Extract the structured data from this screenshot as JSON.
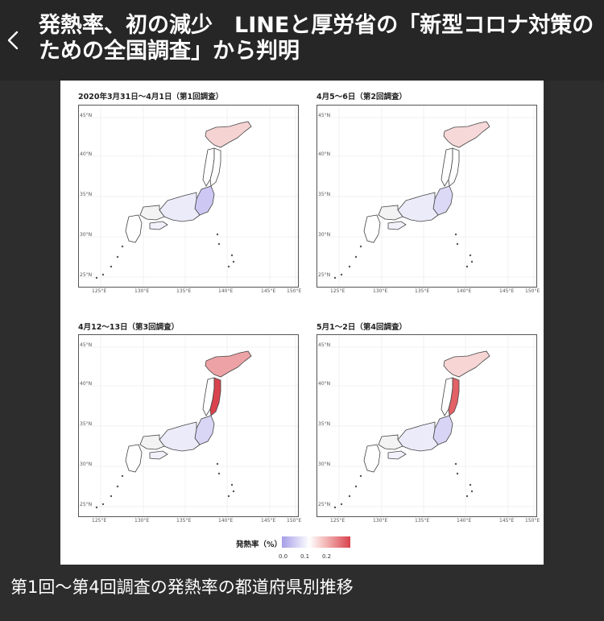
{
  "header": {
    "back_label": "‹",
    "title": "発熱率、初の減少　LINEと厚労省の「新型コロナ対策のための全国調査」から判明"
  },
  "figure": {
    "panels": [
      {
        "title": "2020年3月31日〜4月1日（第1回調査）",
        "fill": {
          "hokkaido": "#f6d3d3",
          "kanto": "#cdc8f3",
          "tohoku_pacific": "#ffffff"
        }
      },
      {
        "title": "4月5〜6日（第2回調査）",
        "fill": {
          "hokkaido": "#f7d8d8",
          "kanto": "#dcd9f6",
          "tohoku_pacific": "#ffffff"
        }
      },
      {
        "title": "4月12〜13日（第3回調査）",
        "fill": {
          "hokkaido": "#eda2a5",
          "kanto": "#d9d5f5",
          "tohoku_pacific": "#d9434d"
        }
      },
      {
        "title": "5月1〜2日（第4回調査）",
        "fill": {
          "hokkaido": "#f7d5d5",
          "kanto": "#d8d4f5",
          "tohoku_pacific": "#e26166"
        }
      }
    ],
    "lat_labels": [
      "45°N",
      "40°N",
      "35°N",
      "30°N",
      "25°N"
    ],
    "lon_labels": [
      "125°E",
      "130°E",
      "135°E",
      "140°E",
      "145°E",
      "150°E"
    ],
    "legend": {
      "title": "発熱率（%）",
      "ticks": [
        "0.0",
        "0.1",
        "0.2"
      ],
      "colors": [
        "#a59ee8",
        "#ffffff",
        "#f2b4b4",
        "#d9434d"
      ]
    }
  },
  "caption": "第1回〜第4回調査の発熱率の都道府県別推移",
  "colors": {
    "background": "#2d2d2d",
    "header": "#262626",
    "text": "#ffffff"
  }
}
